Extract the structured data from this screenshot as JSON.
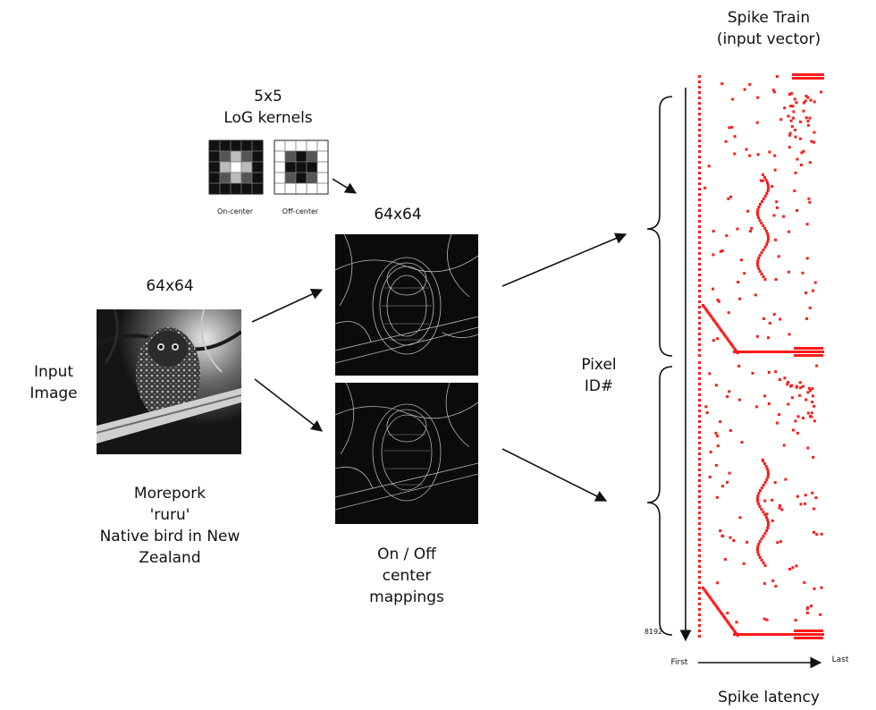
{
  "input": {
    "size_label": "64x64",
    "title": "Input\nImage",
    "caption": "Morepork\n'ruru'\nNative bird in New\nZealand"
  },
  "kernels": {
    "title": "5x5\nLoG kernels",
    "on_label": "On-center",
    "off_label": "Off-center",
    "on_grid": [
      [
        0,
        0,
        0,
        0,
        0
      ],
      [
        0,
        1,
        2,
        1,
        0
      ],
      [
        0,
        2,
        3,
        2,
        0
      ],
      [
        0,
        1,
        2,
        1,
        0
      ],
      [
        0,
        0,
        0,
        0,
        0
      ]
    ],
    "off_grid": [
      [
        3,
        3,
        3,
        3,
        3
      ],
      [
        3,
        1,
        0,
        1,
        3
      ],
      [
        3,
        0,
        0,
        0,
        3
      ],
      [
        3,
        1,
        0,
        1,
        3
      ],
      [
        3,
        3,
        3,
        3,
        3
      ]
    ]
  },
  "mappings": {
    "size_label": "64x64",
    "caption": "On / Off\ncenter\nmappings"
  },
  "spike_train": {
    "title": "Spike Train\n(input vector)",
    "y_axis_label": "Pixel\nID#",
    "y_axis_max_label": "8192",
    "x_axis_start_label": "First",
    "x_axis_end_label": "Last",
    "x_axis_title": "Spike latency"
  },
  "colors": {
    "spike": "#ff1a1a",
    "arrow": "#111111"
  }
}
